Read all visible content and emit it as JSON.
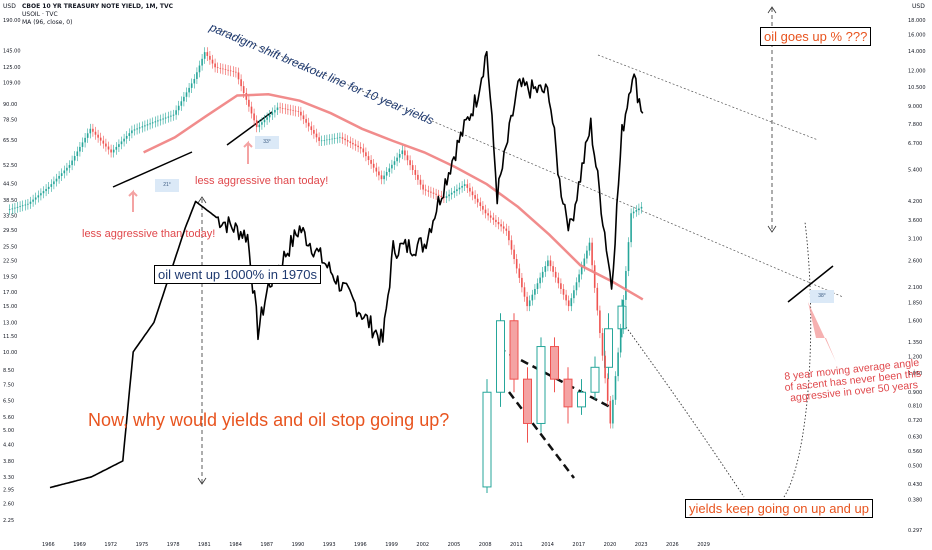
{
  "header": {
    "currency_left": "USD",
    "currency_right": "USD",
    "title": "CBOE 10 YR TREASURY NOTE YIELD, 1M, TVC",
    "series2": "USOIL · TVC",
    "indicator": "MA (96, close, 0)"
  },
  "annotations": {
    "paradigm": "paradigm shift breakout line for 10 year yields",
    "oil_up_q": "oil goes up % ???",
    "less_aggr_1": "less aggressive than today!",
    "less_aggr_2": "less aggressive than today!",
    "oil_1000": "oil went up 1000% in 1970s",
    "why": "Now, why would yields and oil stop going up?",
    "yields_keep": "yields keep going on up and up",
    "ma_note_l1": "8 year moving average angle",
    "ma_note_l2": "of ascent has never been this",
    "ma_note_l3": "aggressive in over 50 years",
    "angle1": "21°",
    "angle2": "33°",
    "angle3": "38°"
  },
  "colors": {
    "oil": "#000000",
    "ma": "#f08080",
    "candle_up": "#26a69a",
    "candle_down": "#ef5350",
    "accent_text": "#e8541f"
  },
  "chart_data": {
    "type": "line",
    "x_ticks": [
      "1966",
      "1969",
      "1972",
      "1975",
      "1978",
      "1981",
      "1984",
      "1987",
      "1990",
      "1993",
      "1996",
      "1999",
      "2002",
      "2005",
      "2008",
      "2011",
      "2014",
      "2017",
      "2020",
      "2023",
      "2026",
      "2029"
    ],
    "left_axis_ticks": [
      "190.00",
      "145.00",
      "125.00",
      "109.00",
      "90.00",
      "78.50",
      "65.50",
      "52.50",
      "44.50",
      "38.50",
      "33.50",
      "29.50",
      "25.50",
      "22.50",
      "19.50",
      "17.00",
      "15.00",
      "13.00",
      "11.50",
      "10.00",
      "8.50",
      "7.50",
      "6.50",
      "5.60",
      "5.00",
      "4.40",
      "3.80",
      "3.30",
      "2.95",
      "2.60",
      "2.25"
    ],
    "right_axis_ticks": [
      "18.000",
      "16.000",
      "14.000",
      "12.000",
      "10.500",
      "9.000",
      "7.800",
      "6.700",
      "5.400",
      "4.200",
      "3.600",
      "3.100",
      "2.600",
      "2.100",
      "1.850",
      "1.600",
      "1.350",
      "1.200",
      "1.050",
      "0.900",
      "0.810",
      "0.720",
      "0.630",
      "0.560",
      "0.500",
      "0.430",
      "0.380",
      "0.297"
    ],
    "series": [
      {
        "name": "CBOE 10 YR TREASURY NOTE YIELD",
        "axis": "right",
        "style": "candles",
        "color": "#26a69a",
        "x": [
          1962,
          1964,
          1966,
          1968,
          1970,
          1972,
          1974,
          1976,
          1978,
          1980,
          1981,
          1982,
          1984,
          1986,
          1988,
          1990,
          1992,
          1994,
          1996,
          1998,
          2000,
          2002,
          2004,
          2006,
          2008,
          2010,
          2012,
          2014,
          2016,
          2018,
          2020,
          2021,
          2022,
          2023
        ],
        "y": [
          3.9,
          4.1,
          4.7,
          5.6,
          7.5,
          6.2,
          7.4,
          7.9,
          8.4,
          11.2,
          13.9,
          12.3,
          11.8,
          7.6,
          8.9,
          8.6,
          6.8,
          7.0,
          6.4,
          5.0,
          6.3,
          4.6,
          4.3,
          4.8,
          3.8,
          3.3,
          1.8,
          2.6,
          1.8,
          3.0,
          0.7,
          1.5,
          3.8,
          4.0
        ]
      },
      {
        "name": "MA (96, close, 0)",
        "axis": "right",
        "style": "line",
        "color": "#f08080",
        "x": [
          1975,
          1978,
          1981,
          1984,
          1987,
          1990,
          1993,
          1996,
          1999,
          2002,
          2005,
          2008,
          2011,
          2014,
          2017,
          2020,
          2023
        ],
        "y": [
          6.2,
          7.0,
          8.3,
          9.8,
          9.9,
          9.4,
          8.5,
          7.5,
          6.8,
          6.2,
          5.5,
          4.8,
          4.0,
          3.2,
          2.5,
          2.2,
          1.9
        ]
      },
      {
        "name": "USOIL",
        "axis": "left",
        "style": "line",
        "color": "#000000",
        "x": [
          1966,
          1970,
          1973,
          1974,
          1976,
          1979,
          1980,
          1982,
          1985,
          1986,
          1987,
          1990,
          1994,
          1998,
          1999,
          2002,
          2005,
          2007,
          2008,
          2009,
          2011,
          2014,
          2015,
          2016,
          2018,
          2020,
          2021,
          2022,
          2023
        ],
        "y": [
          3.0,
          3.3,
          3.8,
          10.0,
          13.0,
          30,
          38,
          33,
          28,
          12,
          18,
          30,
          18,
          11,
          25,
          26,
          60,
          95,
          145,
          40,
          105,
          100,
          45,
          30,
          75,
          18,
          70,
          120,
          83
        ]
      }
    ],
    "title": "CBOE 10 YR TREASURY NOTE YIELD, 1M, TVC",
    "log_scale": true,
    "grid": false,
    "inset": {
      "type": "candles",
      "axis": "right",
      "years": [
        2000,
        2001,
        2002,
        2003,
        2004,
        2005,
        2006,
        2007,
        2008,
        2009,
        2010
      ],
      "open": [
        0.42,
        0.9,
        1.6,
        1.0,
        0.7,
        1.3,
        1.0,
        0.8,
        0.9,
        1.1,
        1.5
      ],
      "close": [
        0.9,
        1.6,
        1.0,
        0.7,
        1.3,
        1.0,
        0.8,
        0.9,
        1.1,
        1.5,
        1.8
      ],
      "high": [
        1.0,
        1.7,
        1.7,
        1.1,
        1.4,
        1.4,
        1.1,
        1.0,
        1.2,
        1.7,
        1.9
      ],
      "low": [
        0.4,
        0.8,
        0.9,
        0.6,
        0.65,
        0.9,
        0.7,
        0.75,
        0.85,
        1.0,
        1.4
      ]
    }
  }
}
